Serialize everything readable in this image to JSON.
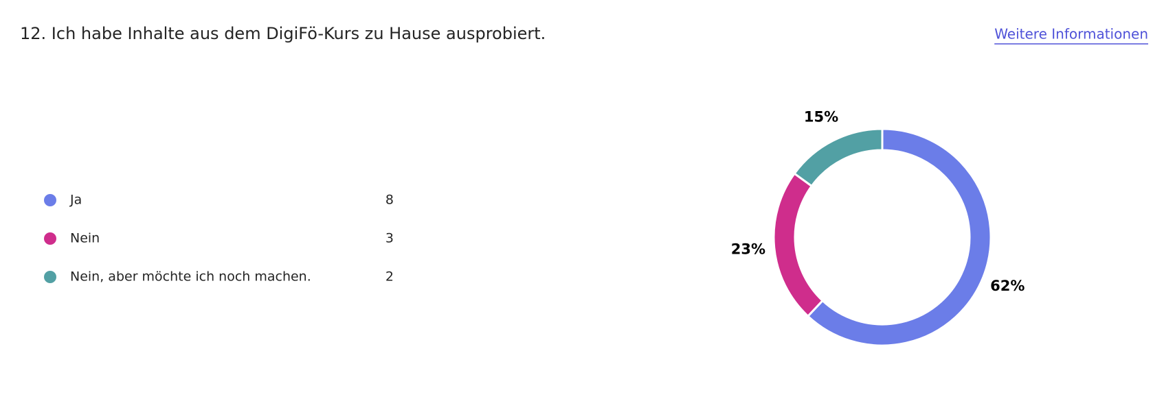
{
  "chart_data": {
    "type": "pie",
    "title": "12. Ich habe Inhalte aus dem DigiFö-Kurs zu Hause ausprobiert.",
    "link": "Weitere Informationen",
    "categories": [
      "Ja",
      "Nein",
      "Nein, aber möchte ich noch machen."
    ],
    "counts": [
      8,
      3,
      2
    ],
    "values": [
      62,
      23,
      15
    ],
    "value_labels": [
      "62%",
      "23%",
      "15%"
    ],
    "colors": [
      "#6b7de8",
      "#cf2d8c",
      "#52a0a4"
    ]
  }
}
